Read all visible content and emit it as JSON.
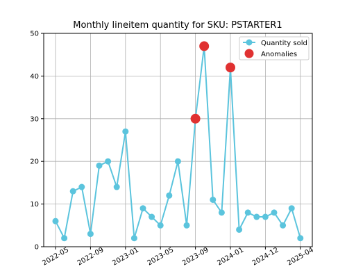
{
  "chart_data": {
    "type": "line",
    "title": "Monthly lineitem quantity for SKU: PSTARTER1",
    "xlabel": "",
    "ylabel": "",
    "x_tick_labels": [
      "2022-05",
      "2022-09",
      "2023-01",
      "2023-05",
      "2023-09",
      "2024-01",
      "2024-12",
      "2025-04"
    ],
    "y_ticks": [
      0,
      10,
      20,
      30,
      40,
      50
    ],
    "ylim": [
      0,
      50
    ],
    "grid": true,
    "legend_position": "top-right",
    "series": [
      {
        "name": "Quantity sold",
        "color": "#5bc4dd",
        "values": [
          6,
          2,
          13,
          14,
          3,
          19,
          20,
          14,
          27,
          2,
          9,
          7,
          5,
          12,
          20,
          5,
          30,
          47,
          11,
          8,
          42,
          4,
          8,
          7,
          7,
          8,
          5,
          9,
          2
        ]
      },
      {
        "name": "Anomalies",
        "color": "#e03131",
        "points": [
          {
            "index": 16,
            "value": 30
          },
          {
            "index": 17,
            "value": 47
          },
          {
            "index": 20,
            "value": 42
          }
        ]
      }
    ]
  }
}
